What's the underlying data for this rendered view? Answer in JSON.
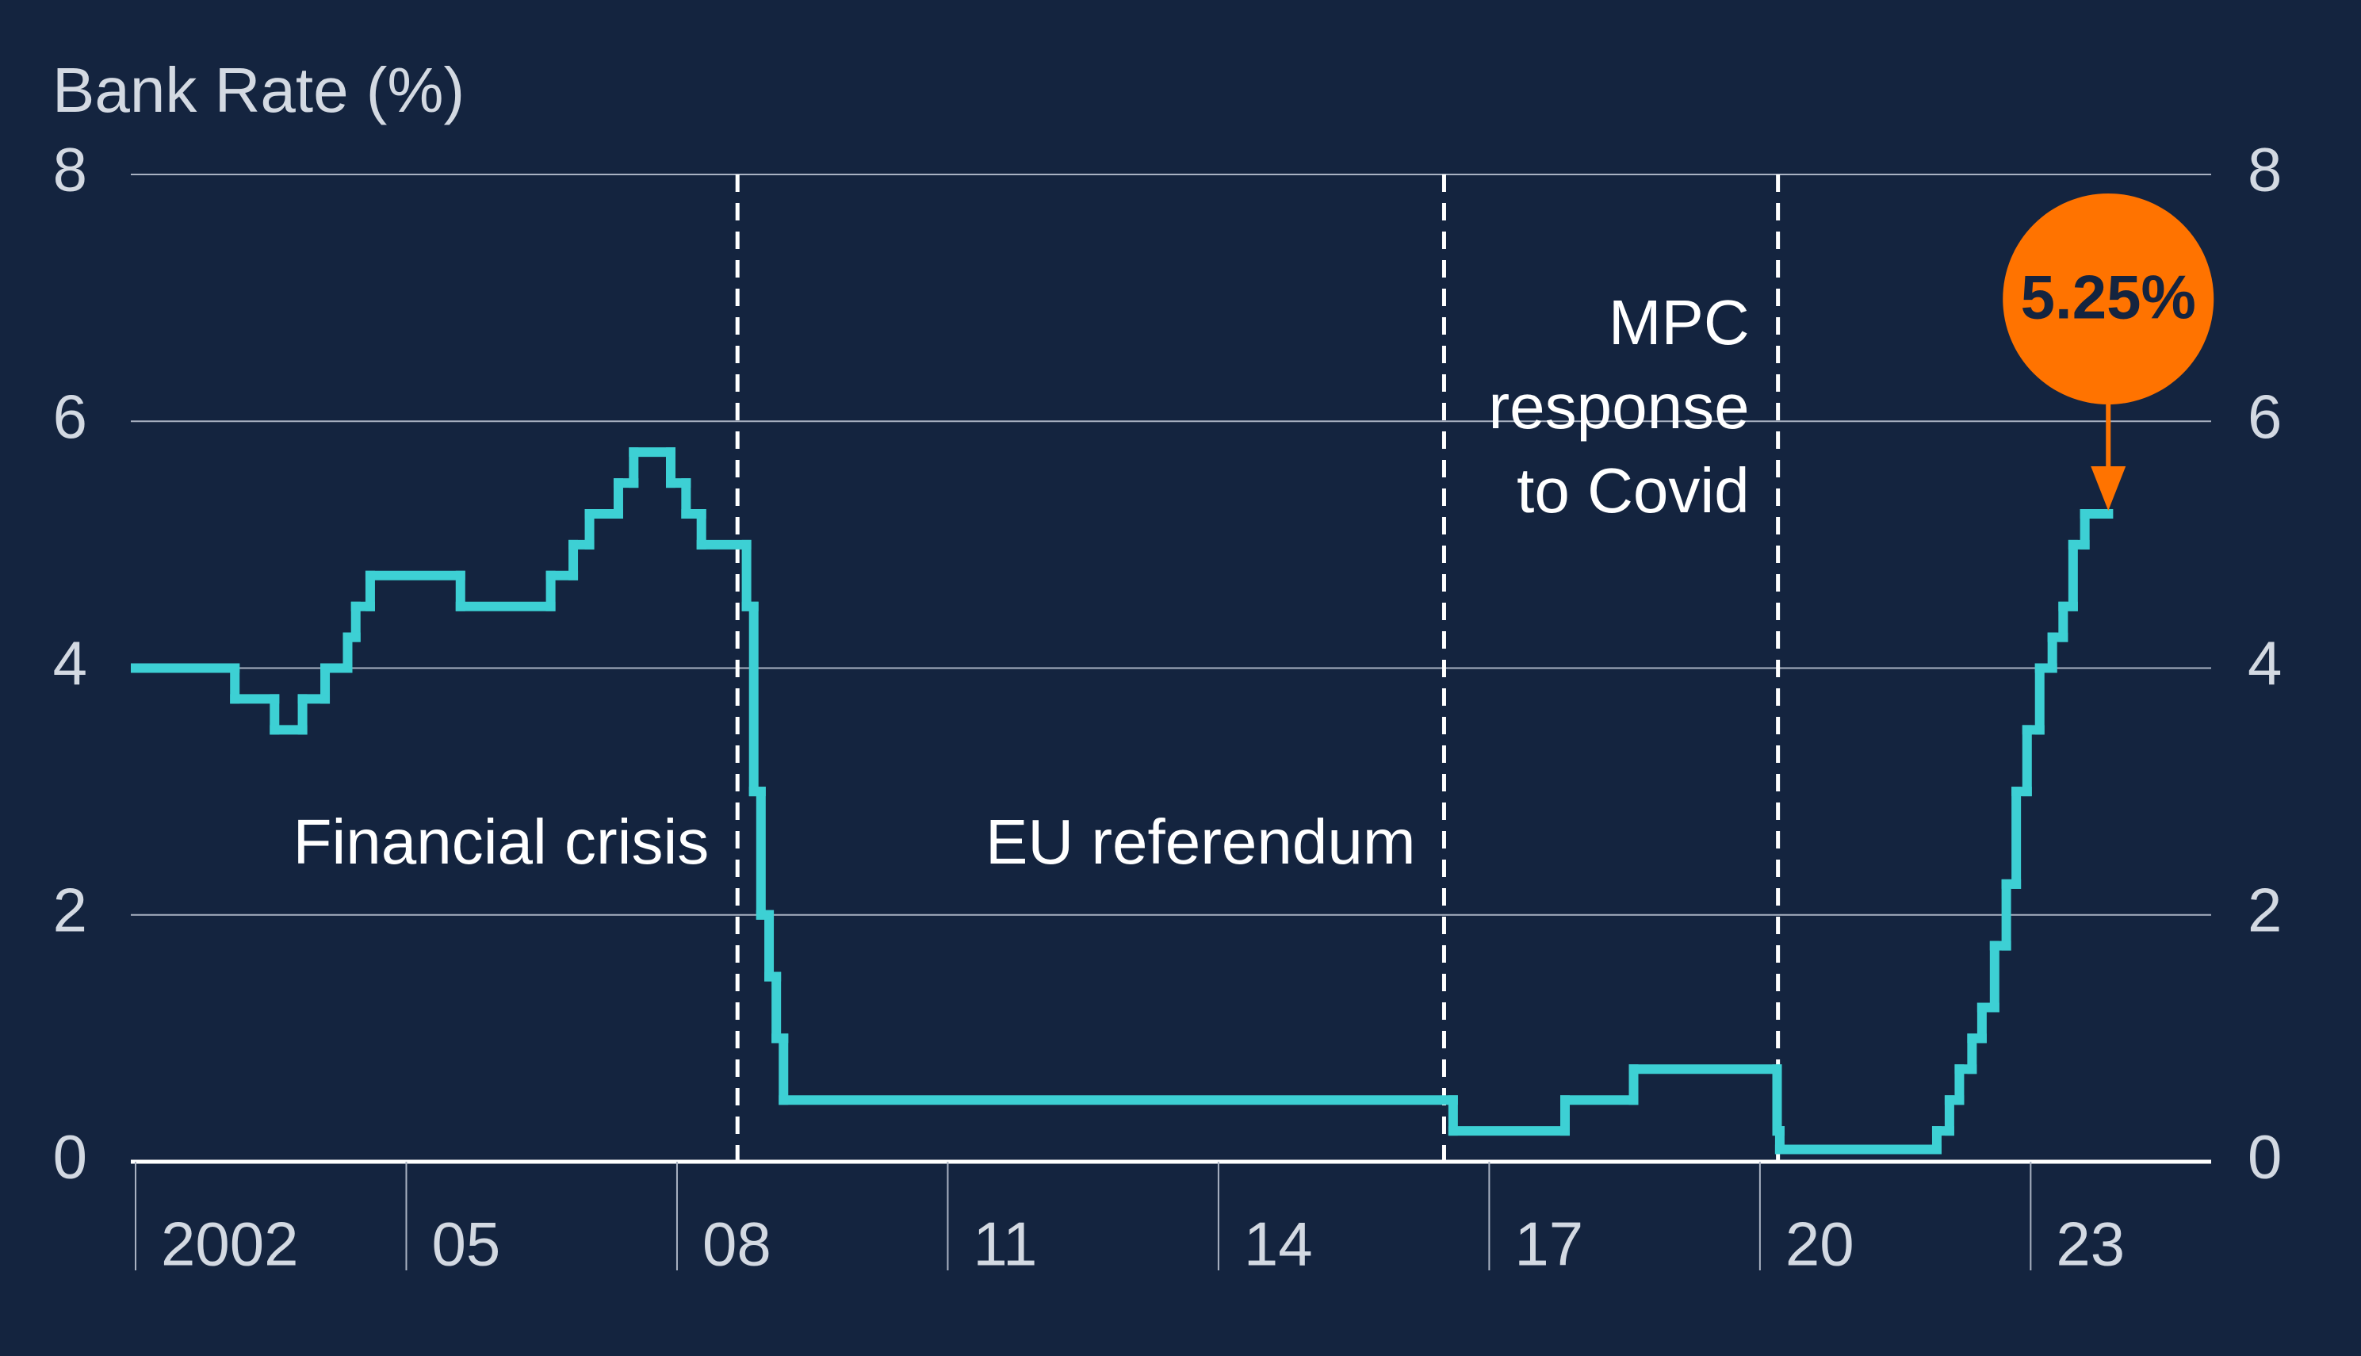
{
  "chart_data": {
    "type": "step",
    "y_label": "Bank Rate (%)",
    "xlim": [
      2002,
      2025
    ],
    "xticks": [
      2002,
      {
        "value": 2005,
        "label": "05"
      },
      {
        "value": 2008,
        "label": "08"
      },
      {
        "value": 2011,
        "label": "11"
      },
      {
        "value": 2014,
        "label": "14"
      },
      {
        "value": 2017,
        "label": "17"
      },
      {
        "value": 2020,
        "label": "20"
      },
      {
        "value": 2023,
        "label": "23"
      }
    ],
    "ylim": [
      0,
      8
    ],
    "yticks": [
      0,
      2,
      4,
      6,
      8
    ],
    "grid": true,
    "series": [
      {
        "name": "Bank Rate",
        "color": "#3dd0d4",
        "x": [
          2002.0,
          2003.1,
          2003.54,
          2003.85,
          2004.1,
          2004.35,
          2004.44,
          2004.6,
          2005.6,
          2006.6,
          2006.85,
          2007.03,
          2007.35,
          2007.52,
          2007.93,
          2008.1,
          2008.27,
          2008.77,
          2008.85,
          2008.93,
          2009.02,
          2009.1,
          2009.18,
          2016.6,
          2017.84,
          2018.6,
          2020.19,
          2020.22,
          2021.96,
          2022.1,
          2022.21,
          2022.35,
          2022.46,
          2022.6,
          2022.73,
          2022.84,
          2022.96,
          2023.1,
          2023.24,
          2023.36,
          2023.47,
          2023.6,
          2023.86
        ],
        "values": [
          4.0,
          3.75,
          3.5,
          3.75,
          4.0,
          4.25,
          4.5,
          4.75,
          4.5,
          4.75,
          5.0,
          5.25,
          5.5,
          5.75,
          5.5,
          5.25,
          5.0,
          4.5,
          3.0,
          2.0,
          1.5,
          1.0,
          0.5,
          0.25,
          0.5,
          0.75,
          0.25,
          0.1,
          0.25,
          0.5,
          0.75,
          1.0,
          1.25,
          1.75,
          2.25,
          3.0,
          3.5,
          4.0,
          4.25,
          4.5,
          5.0,
          5.25,
          5.25
        ],
        "value_labels": [
          null,
          null,
          null,
          null,
          null,
          null,
          null,
          null,
          null,
          null,
          null,
          null,
          null,
          null,
          null,
          null,
          null,
          null,
          null,
          null,
          null,
          null,
          null,
          null,
          null,
          null,
          null,
          null,
          null,
          null,
          null,
          null,
          null,
          null,
          null,
          null,
          null,
          null,
          null,
          null,
          null,
          null,
          "5.25%"
        ]
      }
    ],
    "events": [
      {
        "x": 2008.67,
        "label": [
          "Financial crisis"
        ]
      },
      {
        "x": 2016.5,
        "label": [
          "EU referendum"
        ]
      },
      {
        "x": 2020.2,
        "label": [
          "MPC",
          "response",
          "to Covid"
        ]
      }
    ],
    "callout_color": "#ff7300"
  }
}
